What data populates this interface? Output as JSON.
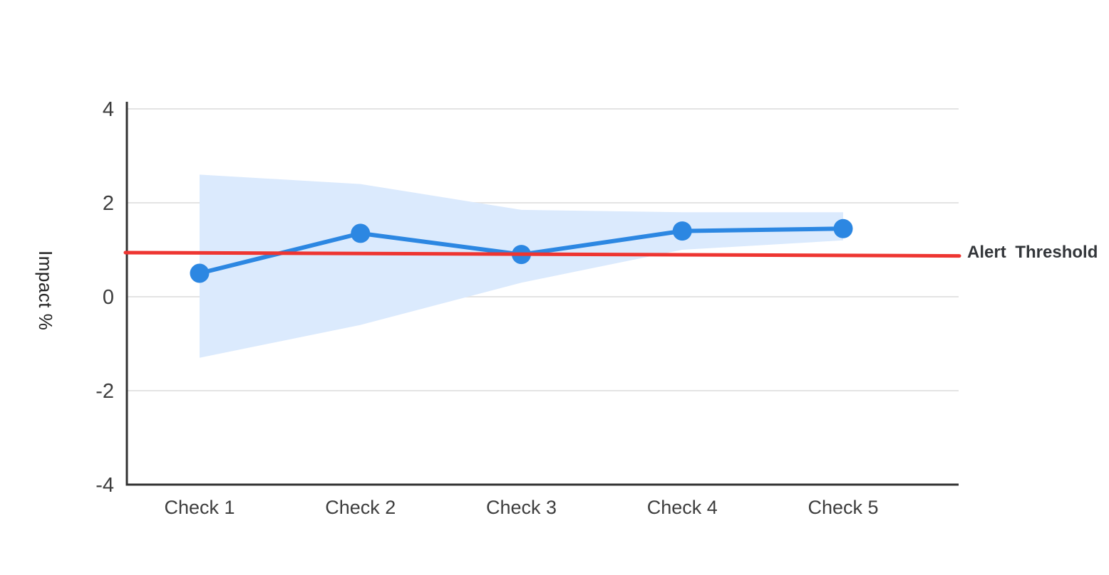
{
  "chart_data": {
    "type": "line",
    "title": "",
    "categories": [
      "Check 1",
      "Check 2",
      "Check 3",
      "Check 4",
      "Check 5"
    ],
    "series": [
      {
        "name": "Impact",
        "values": [
          0.5,
          1.35,
          0.9,
          1.4,
          1.45
        ]
      }
    ],
    "band": {
      "name": "confidence-interval",
      "upper": [
        2.6,
        2.4,
        1.85,
        1.8,
        1.8
      ],
      "lower": [
        -1.3,
        -0.6,
        0.3,
        1.0,
        1.2
      ]
    },
    "threshold": {
      "label": "Alert Threshold",
      "start_value": 0.94,
      "end_value": 0.87
    },
    "xlabel": "",
    "ylabel": "Impact %",
    "ylim": [
      -4,
      4
    ],
    "yticks": [
      4,
      2,
      0,
      -2,
      -4
    ],
    "grid": true,
    "legend_position": "threshold label right of plot",
    "colors": {
      "line": "#2c87e2",
      "marker": "#2c87e2",
      "band": "#dbeafd",
      "threshold": "#ee3531",
      "grid": "#e4e4e4",
      "axis": "#323232",
      "tick_text": "#3d3d3d",
      "ylabel_text": "#222222",
      "threshold_text": "#33363a",
      "background": "#ffffff"
    }
  }
}
